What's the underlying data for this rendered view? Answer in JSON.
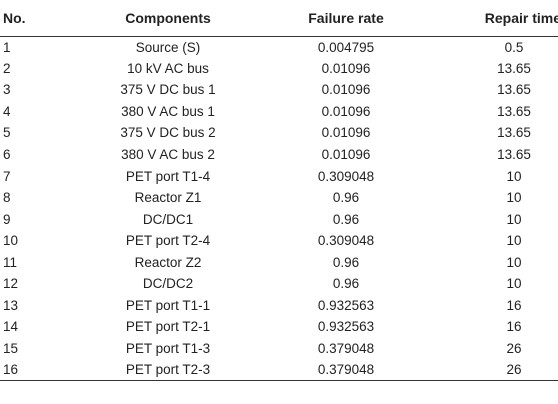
{
  "table": {
    "headers": {
      "no": "No.",
      "components": "Components",
      "failure_rate": "Failure rate",
      "repair_time": "Repair time"
    },
    "rows": [
      {
        "no": "1",
        "component": "Source (S)",
        "failure_rate": "0.004795",
        "repair_time": "0.5"
      },
      {
        "no": "2",
        "component": "10 kV AC bus",
        "failure_rate": "0.01096",
        "repair_time": "13.65"
      },
      {
        "no": "3",
        "component": "375 V DC bus 1",
        "failure_rate": "0.01096",
        "repair_time": "13.65"
      },
      {
        "no": "4",
        "component": "380 V AC bus 1",
        "failure_rate": "0.01096",
        "repair_time": "13.65"
      },
      {
        "no": "5",
        "component": "375 V DC bus 2",
        "failure_rate": "0.01096",
        "repair_time": "13.65"
      },
      {
        "no": "6",
        "component": "380 V AC bus 2",
        "failure_rate": "0.01096",
        "repair_time": "13.65"
      },
      {
        "no": "7",
        "component": "PET port T1-4",
        "failure_rate": "0.309048",
        "repair_time": "10"
      },
      {
        "no": "8",
        "component": "Reactor Z1",
        "failure_rate": "0.96",
        "repair_time": "10"
      },
      {
        "no": "9",
        "component": "DC/DC1",
        "failure_rate": "0.96",
        "repair_time": "10"
      },
      {
        "no": "10",
        "component": "PET port T2-4",
        "failure_rate": "0.309048",
        "repair_time": "10"
      },
      {
        "no": "11",
        "component": "Reactor Z2",
        "failure_rate": "0.96",
        "repair_time": "10"
      },
      {
        "no": "12",
        "component": "DC/DC2",
        "failure_rate": "0.96",
        "repair_time": "10"
      },
      {
        "no": "13",
        "component": "PET port T1-1",
        "failure_rate": "0.932563",
        "repair_time": "16"
      },
      {
        "no": "14",
        "component": "PET port T2-1",
        "failure_rate": "0.932563",
        "repair_time": "16"
      },
      {
        "no": "15",
        "component": "PET port T1-3",
        "failure_rate": "0.379048",
        "repair_time": "26"
      },
      {
        "no": "16",
        "component": "PET port T2-3",
        "failure_rate": "0.379048",
        "repair_time": "26"
      }
    ]
  }
}
